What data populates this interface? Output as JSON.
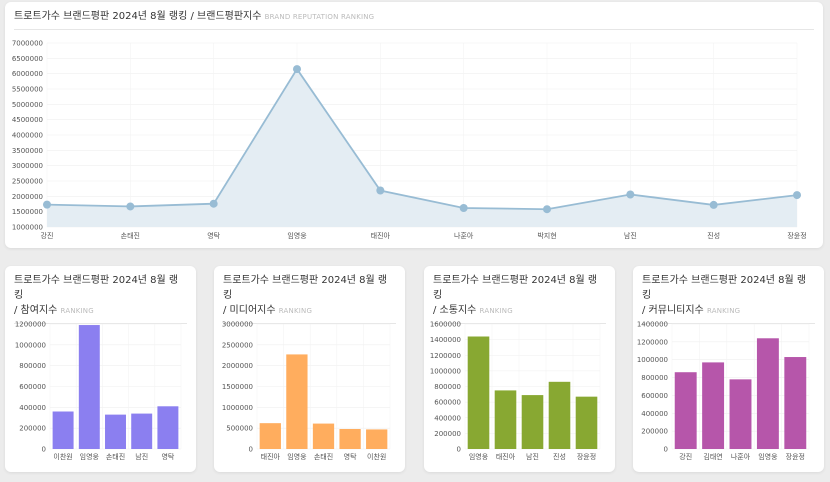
{
  "main": {
    "title": "트로트가수 브랜드평판 2024년 8월 랭킹 / 브랜드평판지수",
    "subtitle": "BRAND REPUTATION RANKING"
  },
  "panels": [
    {
      "title": "트로트가수 브랜드평판 2024년 8월 랭킹",
      "title2": "/ 참여지수",
      "subtitle": "RANKING"
    },
    {
      "title": "트로트가수 브랜드평판 2024년 8월 랭킹",
      "title2": "/ 미디어지수",
      "subtitle": "RANKING"
    },
    {
      "title": "트로트가수 브랜드평판 2024년 8월 랭킹",
      "title2": "/ 소통지수",
      "subtitle": "RANKING"
    },
    {
      "title": "트로트가수 브랜드평판 2024년 8월 랭킹",
      "title2": "/ 커뮤니티지수",
      "subtitle": "RANKING"
    }
  ],
  "colors": {
    "line": "#98bcd4",
    "area": "#e4edf3",
    "purple": "#8b7ff0",
    "orange": "#ffad5e",
    "green": "#88a832",
    "magenta": "#b656aa"
  },
  "chart_data": [
    {
      "type": "area",
      "title": "트로트가수 브랜드평판 2024년 8월 랭킹 / 브랜드평판지수",
      "categories": [
        "강진",
        "손태진",
        "영탁",
        "임영웅",
        "태진아",
        "나훈아",
        "박지현",
        "남진",
        "진성",
        "장윤정"
      ],
      "values": [
        1730000,
        1670000,
        1760000,
        6150000,
        2190000,
        1620000,
        1580000,
        2060000,
        1720000,
        2040000
      ],
      "ylim": [
        1000000,
        7000000
      ],
      "ticks": [
        1000000,
        1500000,
        2000000,
        2500000,
        3000000,
        3500000,
        4000000,
        4500000,
        5000000,
        5500000,
        6000000,
        6500000,
        7000000
      ]
    },
    {
      "type": "bar",
      "title": "참여지수",
      "categories": [
        "이찬원",
        "임영웅",
        "손태진",
        "남진",
        "영탁"
      ],
      "values": [
        360000,
        1190000,
        330000,
        340000,
        410000
      ],
      "ylim": [
        0,
        1200000
      ],
      "ticks": [
        0,
        200000,
        400000,
        600000,
        800000,
        1000000,
        1200000
      ]
    },
    {
      "type": "bar",
      "title": "미디어지수",
      "categories": [
        "태진아",
        "임영웅",
        "손태진",
        "영탁",
        "이찬원"
      ],
      "values": [
        620000,
        2270000,
        610000,
        480000,
        470000
      ],
      "ylim": [
        0,
        3000000
      ],
      "ticks": [
        0,
        500000,
        1000000,
        1500000,
        2000000,
        2500000,
        3000000
      ]
    },
    {
      "type": "bar",
      "title": "소통지수",
      "categories": [
        "임영웅",
        "태진아",
        "남진",
        "진성",
        "장윤정"
      ],
      "values": [
        1440000,
        750000,
        690000,
        860000,
        670000
      ],
      "ylim": [
        0,
        1600000
      ],
      "ticks": [
        0,
        200000,
        400000,
        600000,
        800000,
        1000000,
        1200000,
        1400000,
        1600000
      ]
    },
    {
      "type": "bar",
      "title": "커뮤니티지수",
      "categories": [
        "강진",
        "김태연",
        "나훈아",
        "임영웅",
        "장윤정"
      ],
      "values": [
        860000,
        970000,
        780000,
        1240000,
        1030000
      ],
      "ylim": [
        0,
        1400000
      ],
      "ticks": [
        0,
        200000,
        400000,
        600000,
        800000,
        1000000,
        1200000,
        1400000
      ]
    }
  ]
}
